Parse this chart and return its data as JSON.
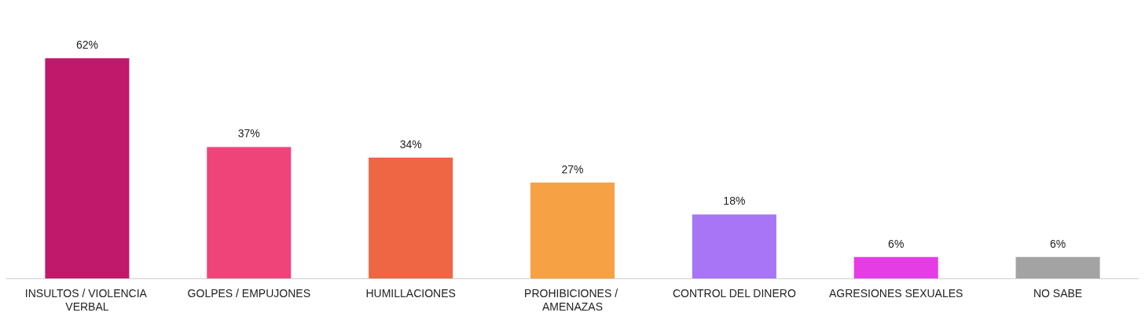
{
  "chart_data": {
    "type": "bar",
    "categories": [
      "INSULTOS / VIOLENCIA VERBAL",
      "GOLPES / EMPUJONES",
      "HUMILLACIONES",
      "PROHIBICIONES / AMENAZAS",
      "CONTROL DEL DINERO",
      "AGRESIONES SEXUALES",
      "NO SABE"
    ],
    "values": [
      62,
      37,
      34,
      27,
      18,
      6,
      6
    ],
    "colors": [
      "#c0186a",
      "#ee4479",
      "#ef6644",
      "#f6a143",
      "#a775f5",
      "#e53ce6",
      "#a3a3a3"
    ],
    "value_labels": [
      "62%",
      "37%",
      "34%",
      "27%",
      "18%",
      "6%",
      "6%"
    ],
    "grid": false
  }
}
